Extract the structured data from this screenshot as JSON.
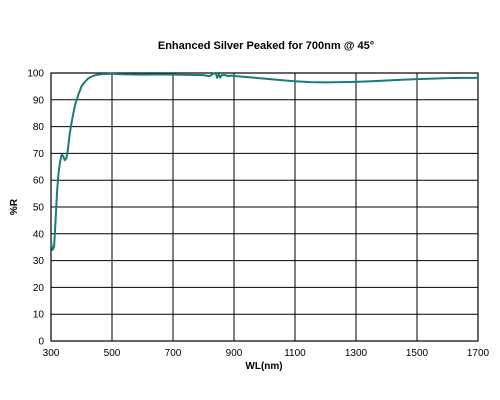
{
  "chart_data": {
    "type": "line",
    "title": "Enhanced Silver Peaked for 700nm @ 45°",
    "xlabel": "WL(nm)",
    "ylabel": "%R",
    "xlim": [
      300,
      1700
    ],
    "ylim": [
      0,
      100
    ],
    "xticks": [
      300,
      500,
      700,
      900,
      1100,
      1300,
      1500,
      1700
    ],
    "yticks": [
      0,
      10,
      20,
      30,
      40,
      50,
      60,
      70,
      80,
      90,
      100
    ],
    "xtick_labels": [
      "300",
      "500",
      "700",
      "900",
      "1100",
      "1300",
      "1500",
      "1700"
    ],
    "ytick_labels": [
      "0",
      "10",
      "20",
      "30",
      "40",
      "50",
      "60",
      "70",
      "80",
      "90",
      "100"
    ],
    "grid": true,
    "legend": "none",
    "series": [
      {
        "color": "#1b7a7a",
        "x": [
          300,
          305,
          310,
          315,
          320,
          325,
          330,
          335,
          340,
          345,
          350,
          355,
          360,
          365,
          370,
          375,
          380,
          390,
          400,
          410,
          420,
          430,
          440,
          450,
          460,
          470,
          480,
          490,
          500,
          520,
          550,
          600,
          650,
          700,
          750,
          800,
          820,
          830,
          840,
          845,
          850,
          855,
          860,
          870,
          880,
          890,
          900,
          950,
          1000,
          1050,
          1100,
          1150,
          1200,
          1250,
          1300,
          1350,
          1400,
          1450,
          1500,
          1550,
          1600,
          1650,
          1700
        ],
        "y": [
          37,
          34,
          35,
          45,
          56,
          63,
          67,
          69.5,
          69,
          67.5,
          68,
          71,
          76,
          80,
          83,
          86,
          88.5,
          92,
          95,
          96.5,
          97.8,
          98.5,
          99,
          99.3,
          99.5,
          99.6,
          99.6,
          99.7,
          99.7,
          99.6,
          99.5,
          99.4,
          99.5,
          99.4,
          99.3,
          99.2,
          98.8,
          99.6,
          100,
          98.2,
          99.5,
          98.3,
          99.2,
          99.2,
          98.9,
          99.0,
          98.9,
          98.4,
          97.9,
          97.4,
          96.9,
          96.6,
          96.5,
          96.6,
          96.7,
          96.9,
          97.2,
          97.5,
          97.7,
          97.9,
          98.1,
          98.2,
          98.2
        ]
      }
    ]
  }
}
